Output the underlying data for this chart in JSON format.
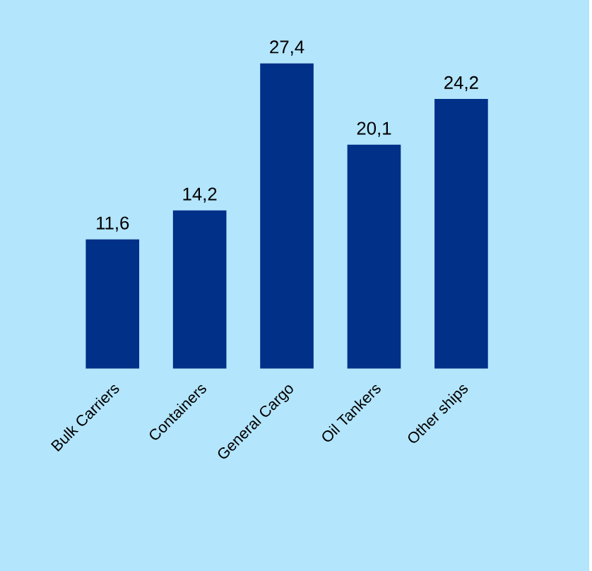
{
  "chart_data": {
    "type": "bar",
    "categories": [
      "Bulk Carriers",
      "Containers",
      "General Cargo",
      "Oil Tankers",
      "Other ships"
    ],
    "values": [
      11.6,
      14.2,
      27.4,
      20.1,
      24.2
    ],
    "value_labels": [
      "11,6",
      "14,2",
      "27,4",
      "20,1",
      "24,2"
    ],
    "color": "#003087"
  }
}
